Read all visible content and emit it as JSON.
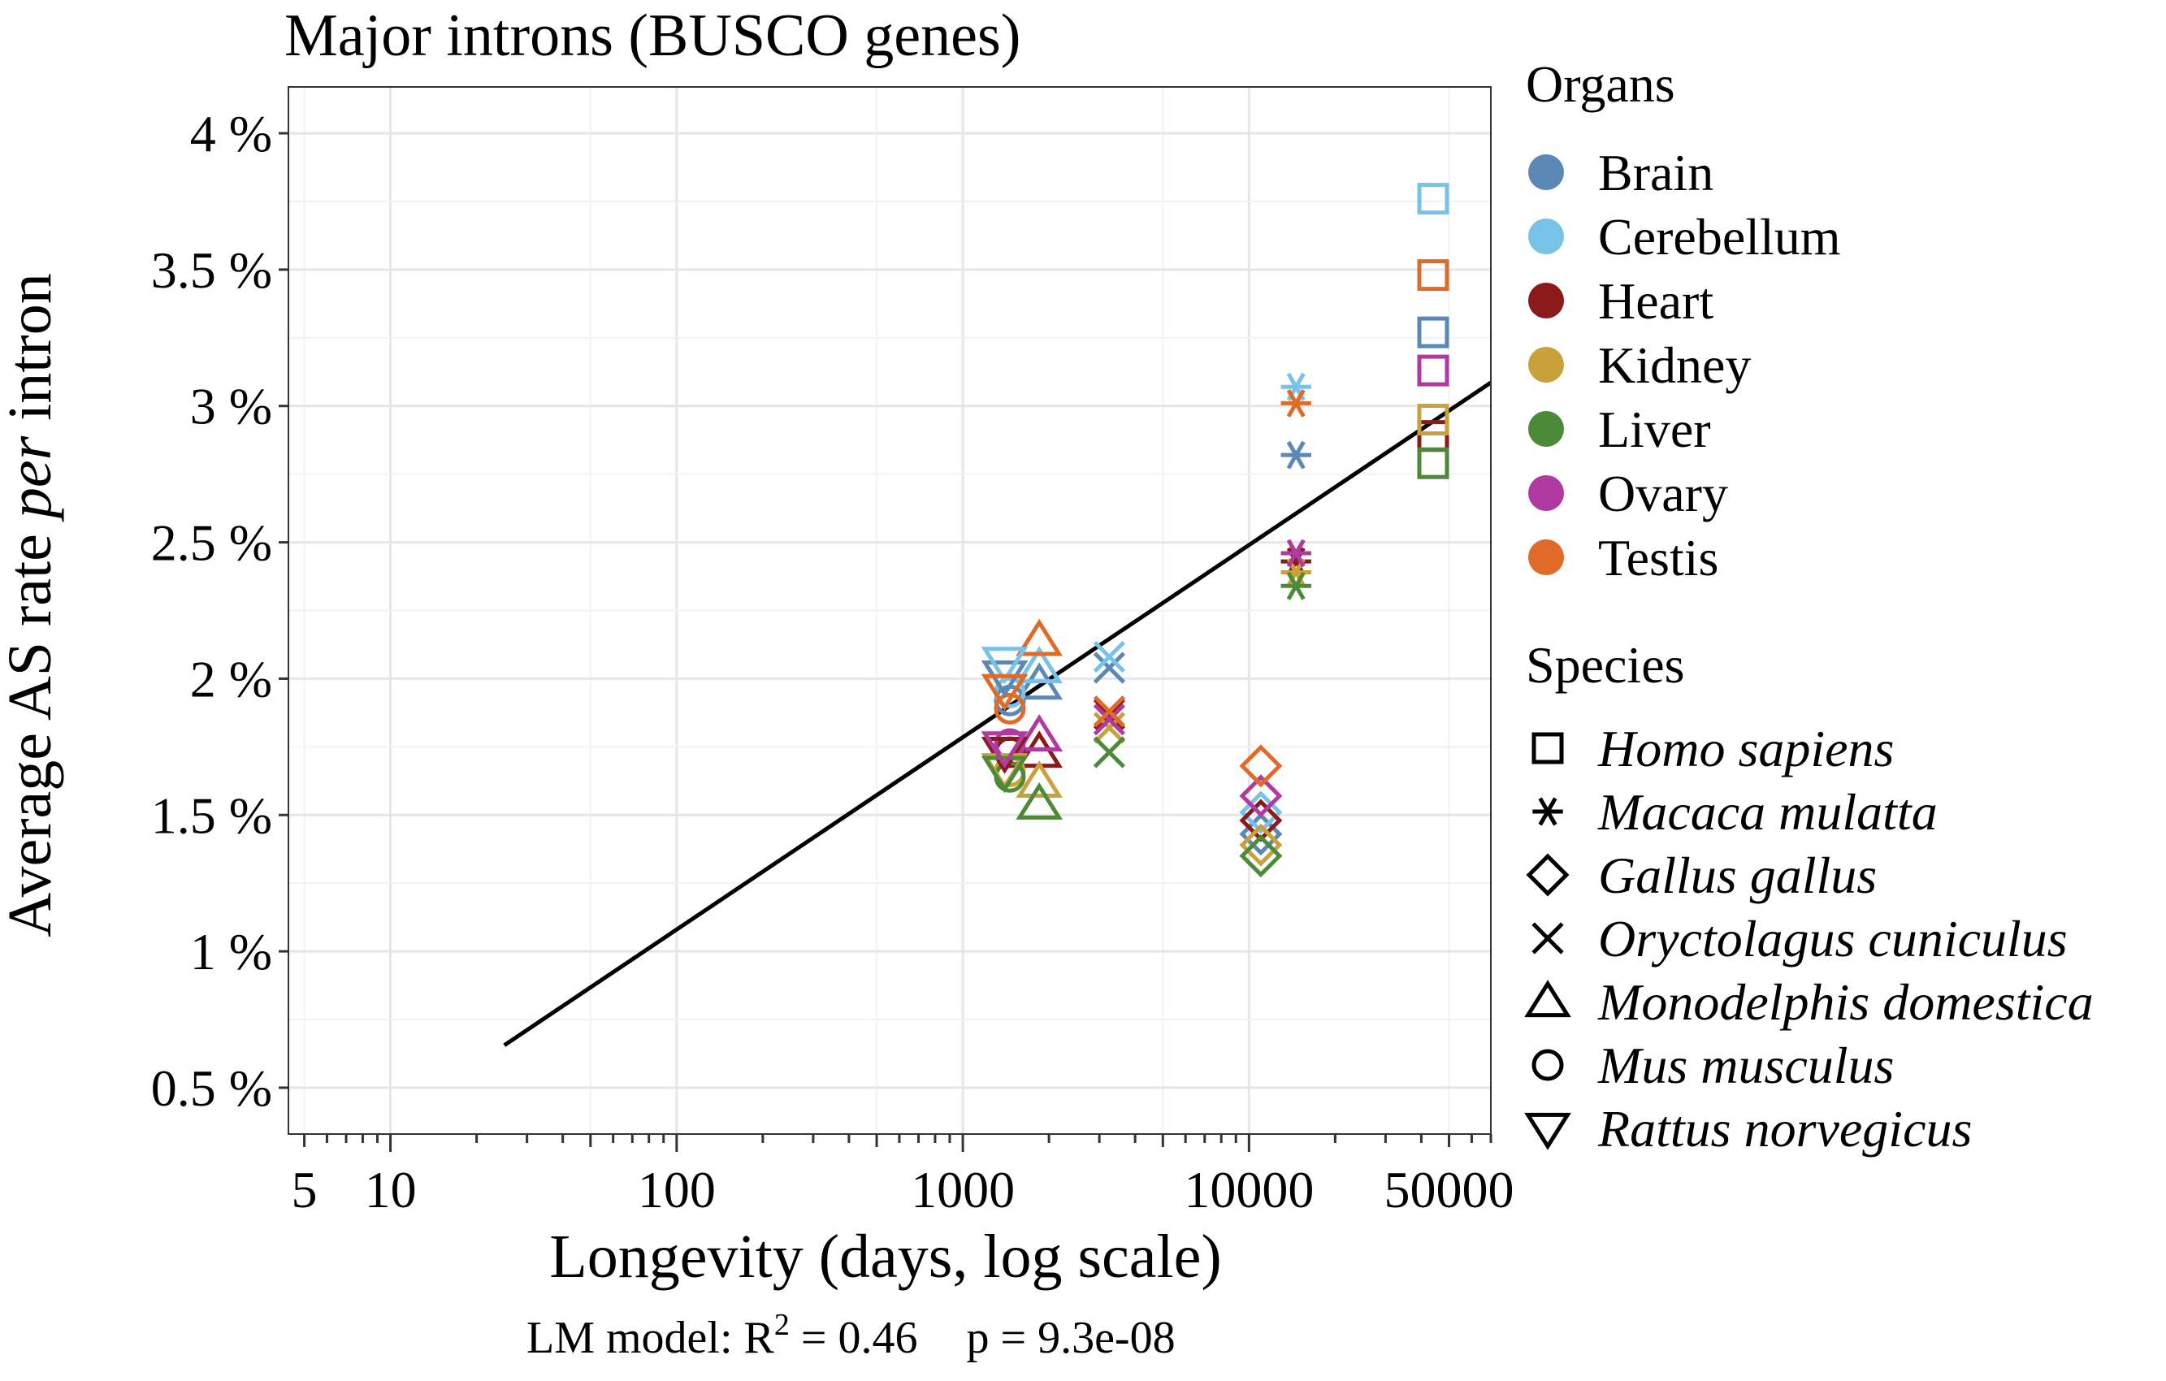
{
  "chart_data": {
    "type": "scatter",
    "title": "Major introns (BUSCO genes)",
    "xlabel": "Longevity (days, log scale)",
    "ylabel_prefix": "Average AS rate ",
    "ylabel_italic": "per",
    "ylabel_suffix": " intron",
    "x_scale": "log",
    "xlim": [
      4.4,
      70000
    ],
    "ylim": [
      0.33,
      4.17
    ],
    "x_ticks": [
      5,
      10,
      100,
      1000,
      10000,
      50000
    ],
    "x_tick_labels": [
      "5",
      "10",
      "100",
      "1000",
      "10000",
      "50000"
    ],
    "y_ticks": [
      0.5,
      1,
      1.5,
      2,
      2.5,
      3,
      3.5,
      4
    ],
    "y_tick_labels": [
      "0.5 %",
      "1 %",
      "1.5 %",
      "2 %",
      "2.5 %",
      "3 %",
      "3.5 %",
      "4 %"
    ],
    "grid": true,
    "legend_position": "right",
    "organs_legend_title": "Organs",
    "species_legend_title": "Species",
    "organs": [
      {
        "name": "Brain",
        "color": "#5b88b5"
      },
      {
        "name": "Cerebellum",
        "color": "#78c2e8"
      },
      {
        "name": "Heart",
        "color": "#8b1a1a"
      },
      {
        "name": "Kidney",
        "color": "#c9a13b"
      },
      {
        "name": "Liver",
        "color": "#4c8a3a"
      },
      {
        "name": "Ovary",
        "color": "#b03a9f"
      },
      {
        "name": "Testis",
        "color": "#e06b28"
      }
    ],
    "species": [
      {
        "name": "Homo sapiens",
        "shape": "square",
        "longevity": 44000
      },
      {
        "name": "Macaca mulatta",
        "shape": "asterisk",
        "longevity": 14600
      },
      {
        "name": "Gallus gallus",
        "shape": "diamond",
        "longevity": 11000
      },
      {
        "name": "Oryctolagus cuniculus",
        "shape": "x",
        "longevity": 3250
      },
      {
        "name": "Monodelphis domestica",
        "shape": "triangle-up",
        "longevity": 1850
      },
      {
        "name": "Mus musculus",
        "shape": "circle",
        "longevity": 1460
      },
      {
        "name": "Rattus norvegicus",
        "shape": "triangle-down",
        "longevity": 1400
      }
    ],
    "points": [
      {
        "species": "Homo sapiens",
        "organ": "Brain",
        "x": 44000,
        "y": 3.27
      },
      {
        "species": "Homo sapiens",
        "organ": "Cerebellum",
        "x": 44000,
        "y": 3.76
      },
      {
        "species": "Homo sapiens",
        "organ": "Heart",
        "x": 44000,
        "y": 2.89
      },
      {
        "species": "Homo sapiens",
        "organ": "Kidney",
        "x": 44000,
        "y": 2.95
      },
      {
        "species": "Homo sapiens",
        "organ": "Liver",
        "x": 44000,
        "y": 2.79
      },
      {
        "species": "Homo sapiens",
        "organ": "Ovary",
        "x": 44000,
        "y": 3.13
      },
      {
        "species": "Homo sapiens",
        "organ": "Testis",
        "x": 44000,
        "y": 3.48
      },
      {
        "species": "Macaca mulatta",
        "organ": "Brain",
        "x": 14600,
        "y": 2.82
      },
      {
        "species": "Macaca mulatta",
        "organ": "Cerebellum",
        "x": 14600,
        "y": 3.07
      },
      {
        "species": "Macaca mulatta",
        "organ": "Heart",
        "x": 14600,
        "y": 2.43
      },
      {
        "species": "Macaca mulatta",
        "organ": "Kidney",
        "x": 14600,
        "y": 2.39
      },
      {
        "species": "Macaca mulatta",
        "organ": "Liver",
        "x": 14600,
        "y": 2.34
      },
      {
        "species": "Macaca mulatta",
        "organ": "Ovary",
        "x": 14600,
        "y": 2.46
      },
      {
        "species": "Macaca mulatta",
        "organ": "Testis",
        "x": 14600,
        "y": 3.01
      },
      {
        "species": "Gallus gallus",
        "organ": "Brain",
        "x": 11000,
        "y": 1.43
      },
      {
        "species": "Gallus gallus",
        "organ": "Cerebellum",
        "x": 11000,
        "y": 1.51
      },
      {
        "species": "Gallus gallus",
        "organ": "Heart",
        "x": 11000,
        "y": 1.48
      },
      {
        "species": "Gallus gallus",
        "organ": "Kidney",
        "x": 11000,
        "y": 1.39
      },
      {
        "species": "Gallus gallus",
        "organ": "Liver",
        "x": 11000,
        "y": 1.35
      },
      {
        "species": "Gallus gallus",
        "organ": "Ovary",
        "x": 11000,
        "y": 1.57
      },
      {
        "species": "Gallus gallus",
        "organ": "Testis",
        "x": 11000,
        "y": 1.68
      },
      {
        "species": "Oryctolagus cuniculus",
        "organ": "Brain",
        "x": 3250,
        "y": 2.04
      },
      {
        "species": "Oryctolagus cuniculus",
        "organ": "Cerebellum",
        "x": 3250,
        "y": 2.08
      },
      {
        "species": "Oryctolagus cuniculus",
        "organ": "Heart",
        "x": 3250,
        "y": 1.87
      },
      {
        "species": "Oryctolagus cuniculus",
        "organ": "Kidney",
        "x": 3250,
        "y": 1.82
      },
      {
        "species": "Oryctolagus cuniculus",
        "organ": "Liver",
        "x": 3250,
        "y": 1.73
      },
      {
        "species": "Oryctolagus cuniculus",
        "organ": "Ovary",
        "x": 3250,
        "y": 1.85
      },
      {
        "species": "Oryctolagus cuniculus",
        "organ": "Testis",
        "x": 3250,
        "y": 1.88
      },
      {
        "species": "Monodelphis domestica",
        "organ": "Brain",
        "x": 1850,
        "y": 1.98
      },
      {
        "species": "Monodelphis domestica",
        "organ": "Cerebellum",
        "x": 1850,
        "y": 2.04
      },
      {
        "species": "Monodelphis domestica",
        "organ": "Heart",
        "x": 1850,
        "y": 1.73
      },
      {
        "species": "Monodelphis domestica",
        "organ": "Kidney",
        "x": 1850,
        "y": 1.62
      },
      {
        "species": "Monodelphis domestica",
        "organ": "Liver",
        "x": 1850,
        "y": 1.54
      },
      {
        "species": "Monodelphis domestica",
        "organ": "Ovary",
        "x": 1850,
        "y": 1.79
      },
      {
        "species": "Monodelphis domestica",
        "organ": "Testis",
        "x": 1850,
        "y": 2.14
      },
      {
        "species": "Mus musculus",
        "organ": "Brain",
        "x": 1460,
        "y": 1.92
      },
      {
        "species": "Mus musculus",
        "organ": "Cerebellum",
        "x": 1460,
        "y": 1.95
      },
      {
        "species": "Mus musculus",
        "organ": "Heart",
        "x": 1460,
        "y": 1.73
      },
      {
        "species": "Mus musculus",
        "organ": "Kidney",
        "x": 1460,
        "y": 1.66
      },
      {
        "species": "Mus musculus",
        "organ": "Liver",
        "x": 1460,
        "y": 1.64
      },
      {
        "species": "Mus musculus",
        "organ": "Ovary",
        "x": 1460,
        "y": 1.76
      },
      {
        "species": "Mus musculus",
        "organ": "Testis",
        "x": 1460,
        "y": 1.89
      },
      {
        "species": "Rattus norvegicus",
        "organ": "Brain",
        "x": 1400,
        "y": 2.01
      },
      {
        "species": "Rattus norvegicus",
        "organ": "Cerebellum",
        "x": 1400,
        "y": 2.06
      },
      {
        "species": "Rattus norvegicus",
        "organ": "Heart",
        "x": 1400,
        "y": 1.73
      },
      {
        "species": "Rattus norvegicus",
        "organ": "Kidney",
        "x": 1400,
        "y": 1.67
      },
      {
        "species": "Rattus norvegicus",
        "organ": "Liver",
        "x": 1400,
        "y": 1.66
      },
      {
        "species": "Rattus norvegicus",
        "organ": "Ovary",
        "x": 1400,
        "y": 1.75
      },
      {
        "species": "Rattus norvegicus",
        "organ": "Testis",
        "x": 1400,
        "y": 1.96
      }
    ],
    "regression": {
      "intercept": -0.33,
      "slope": 0.705,
      "x_range": [
        25,
        70000
      ],
      "color": "#000000"
    },
    "annotation": {
      "prefix": "LM model: R",
      "superscript": "2",
      "r2_text": " = 0.46",
      "p_text": "p = 9.3e-08"
    }
  }
}
